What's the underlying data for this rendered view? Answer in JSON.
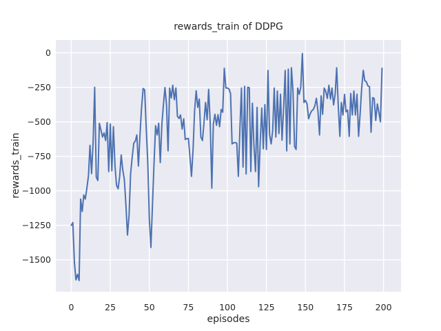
{
  "chart_data": {
    "type": "line",
    "title": "rewards_train of DDPG",
    "xlabel": "episodes",
    "ylabel": "rewards_train",
    "x_ticks": [
      0,
      25,
      50,
      75,
      100,
      125,
      150,
      175,
      200
    ],
    "x_tick_labels": [
      "0",
      "25",
      "50",
      "75",
      "100",
      "125",
      "150",
      "175",
      "200"
    ],
    "y_ticks": [
      0,
      -250,
      -500,
      -750,
      -1000,
      -1250,
      -1500
    ],
    "y_tick_labels": [
      "0",
      "−250",
      "−500",
      "−750",
      "−1000",
      "−1250",
      "−1500"
    ],
    "xlim": [
      -9.9,
      211.2
    ],
    "ylim": [
      -1731,
      93
    ],
    "grid": true,
    "legend": "none",
    "axes_background": "#EAEAF2",
    "figure_background": "#FFFFFF",
    "grid_color": "#FFFFFF",
    "text_color": "#262626",
    "series": [
      {
        "name": "rewards_train",
        "color": "#4C72B0",
        "x_start": 0,
        "x_step": 1,
        "values": [
          -1250,
          -1230,
          -1520,
          -1645,
          -1605,
          -1650,
          -1060,
          -1150,
          -1030,
          -1060,
          -980,
          -890,
          -670,
          -875,
          -640,
          -250,
          -900,
          -925,
          -510,
          -560,
          -610,
          -580,
          -635,
          -505,
          -860,
          -515,
          -855,
          -535,
          -820,
          -960,
          -985,
          -895,
          -740,
          -850,
          -920,
          -1100,
          -1320,
          -1180,
          -880,
          -760,
          -655,
          -640,
          -595,
          -820,
          -600,
          -400,
          -258,
          -268,
          -545,
          -800,
          -1200,
          -1410,
          -1100,
          -805,
          -528,
          -595,
          -510,
          -795,
          -520,
          -380,
          -252,
          -378,
          -710,
          -255,
          -327,
          -235,
          -340,
          -255,
          -460,
          -475,
          -450,
          -552,
          -478,
          -628,
          -622,
          -620,
          -750,
          -895,
          -700,
          -420,
          -275,
          -395,
          -335,
          -610,
          -635,
          -510,
          -360,
          -485,
          -265,
          -510,
          -980,
          -515,
          -445,
          -525,
          -448,
          -535,
          -410,
          -430,
          -112,
          -255,
          -255,
          -262,
          -295,
          -660,
          -652,
          -650,
          -655,
          -895,
          -545,
          -255,
          -828,
          -243,
          -878,
          -250,
          -253,
          -860,
          -365,
          -670,
          -860,
          -395,
          -970,
          -650,
          -400,
          -695,
          -375,
          -700,
          -128,
          -590,
          -660,
          -565,
          -255,
          -610,
          -277,
          -585,
          -300,
          -633,
          -400,
          -128,
          -710,
          -118,
          -660,
          -108,
          -277,
          -678,
          -700,
          -255,
          -300,
          -250,
          -5,
          -360,
          -345,
          -370,
          -477,
          -442,
          -420,
          -410,
          -385,
          -330,
          -428,
          -595,
          -312,
          -445,
          -255,
          -280,
          -330,
          -235,
          -335,
          -255,
          -377,
          -300,
          -108,
          -380,
          -605,
          -360,
          -450,
          -302,
          -427,
          -415,
          -605,
          -295,
          -450,
          -277,
          -450,
          -300,
          -605,
          -445,
          -255,
          -127,
          -202,
          -210,
          -240,
          -245,
          -575,
          -325,
          -330,
          -490,
          -370,
          -430,
          -500,
          -112
        ]
      }
    ]
  }
}
